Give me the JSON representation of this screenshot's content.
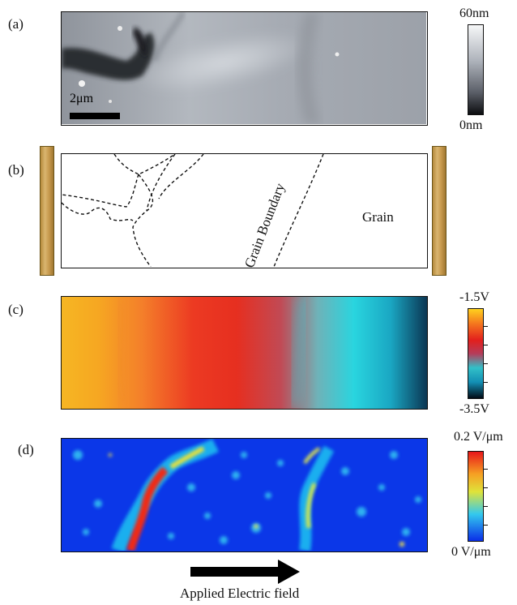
{
  "panels": {
    "a": {
      "label": "(a)",
      "scale_bar": "2μm",
      "colorbar_max": "60nm",
      "colorbar_min": "0nm"
    },
    "b": {
      "label": "(b)",
      "grain_boundary_label": "Grain Boundary",
      "grain_label": "Grain"
    },
    "c": {
      "label": "(c)",
      "colorbar_max": "-1.5V",
      "colorbar_min": "-3.5V"
    },
    "d": {
      "label": "(d)",
      "colorbar_max": "0.2 V/μm",
      "colorbar_min": "0 V/μm"
    }
  },
  "caption": "Applied Electric field",
  "colors": {
    "electrode": "#c9a15a",
    "arrow": "#000000"
  }
}
